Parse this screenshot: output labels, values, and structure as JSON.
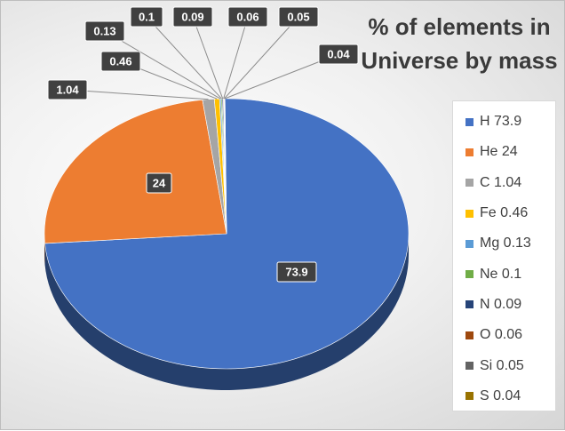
{
  "chart_data": {
    "type": "pie",
    "title": "% of elements in Universe by mass",
    "categories": [
      "H",
      "He",
      "C",
      "Fe",
      "Mg",
      "Ne",
      "N",
      "O",
      "Si",
      "S"
    ],
    "values": [
      73.9,
      24,
      1.04,
      0.46,
      0.13,
      0.1,
      0.09,
      0.06,
      0.05,
      0.04
    ],
    "data_labels": [
      "73.9",
      "24",
      "1.04",
      "0.46",
      "0.13",
      "0.1",
      "0.09",
      "0.06",
      "0.05",
      "0.04"
    ],
    "legend": [
      "H 73.9",
      "He 24",
      "C 1.04",
      "Fe 0.46",
      "Mg 0.13",
      "Ne 0.1",
      "N 0.09",
      "O 0.06",
      "Si 0.05",
      "S 0.04"
    ],
    "legend_position": "right",
    "colors": [
      "#4472C4",
      "#ED7D31",
      "#A5A5A5",
      "#FFC000",
      "#5B9BD5",
      "#70AD47",
      "#264478",
      "#9E480E",
      "#636363",
      "#997300"
    ],
    "style": "3d"
  }
}
